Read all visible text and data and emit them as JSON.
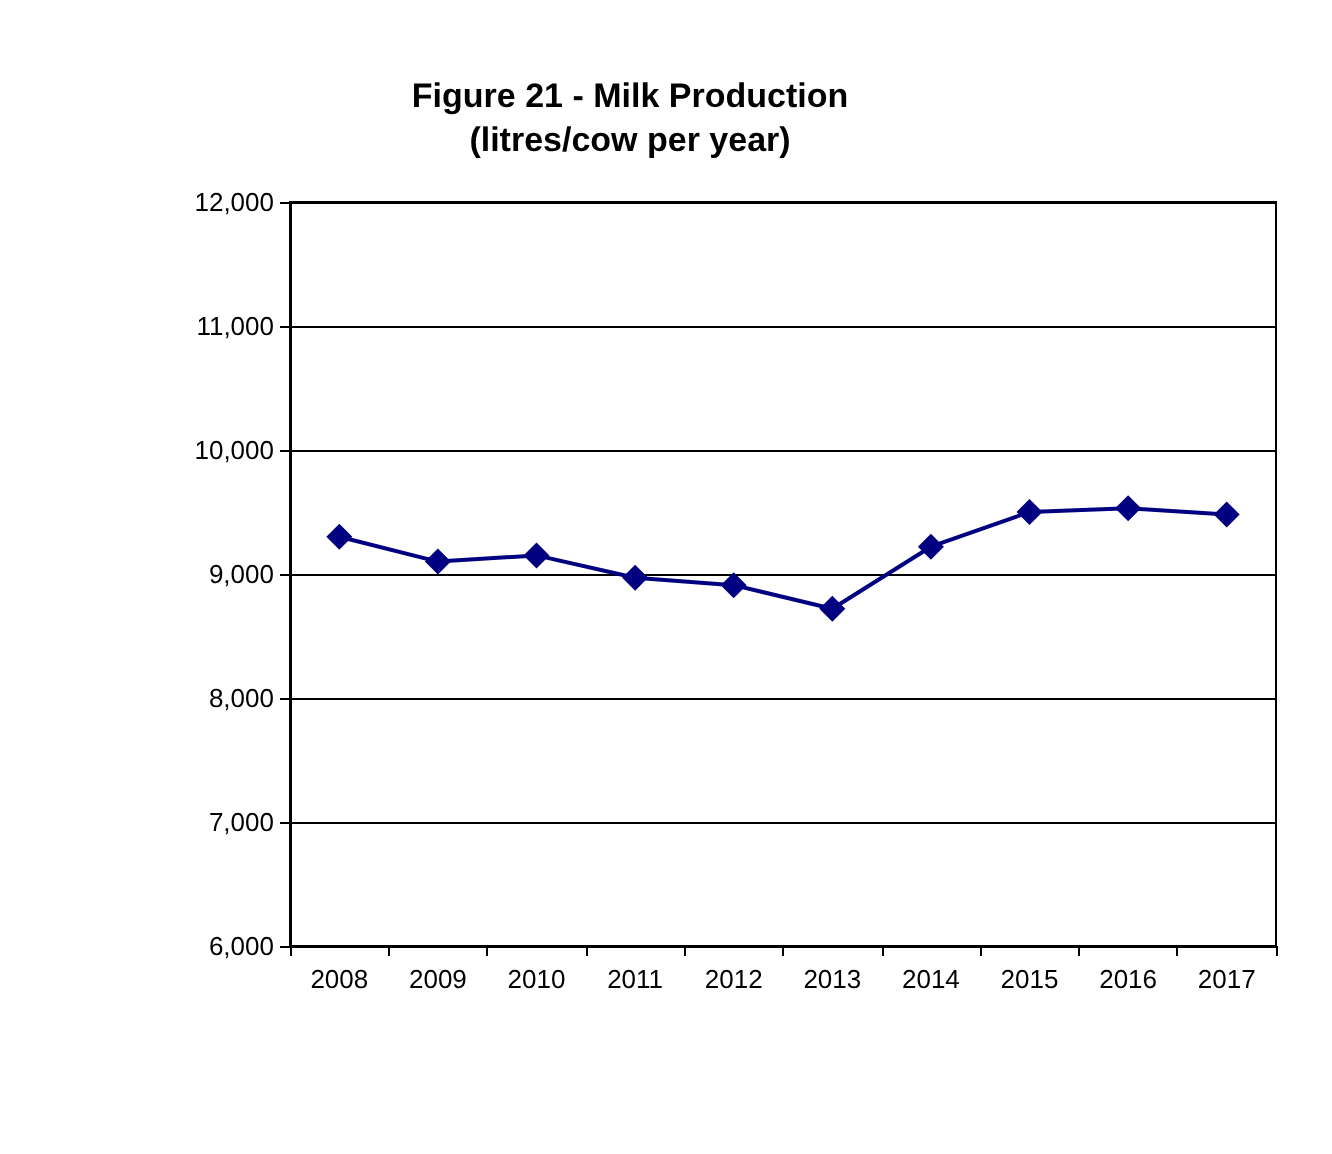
{
  "chart_data": {
    "type": "line",
    "title": "Figure 21 - Milk Production\n(litres/cow per year)",
    "categories": [
      "2008",
      "2009",
      "2010",
      "2011",
      "2012",
      "2013",
      "2014",
      "2015",
      "2016",
      "2017"
    ],
    "series": [
      {
        "color": "#000080",
        "values": [
          9300,
          9100,
          9150,
          8970,
          8910,
          8720,
          9220,
          9500,
          9530,
          9480
        ]
      }
    ],
    "ylim": [
      6000,
      12000
    ],
    "yticks": [
      {
        "value": 6000,
        "label": "6,000"
      },
      {
        "value": 7000,
        "label": "7,000"
      },
      {
        "value": 8000,
        "label": "8,000"
      },
      {
        "value": 9000,
        "label": "9,000"
      },
      {
        "value": 10000,
        "label": "10,000"
      },
      {
        "value": 11000,
        "label": "11,000"
      },
      {
        "value": 12000,
        "label": "12,000"
      }
    ],
    "grid": "y",
    "marker": "diamond",
    "line_style": "solid"
  }
}
